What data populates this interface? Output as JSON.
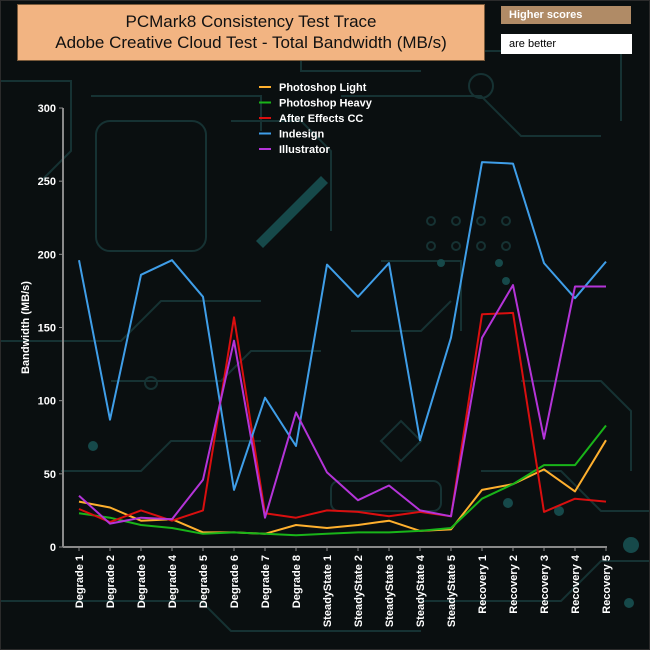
{
  "title_line1": "PCMark8 Consistency Test Trace",
  "title_line2": "Adobe Creative Cloud Test - Total Bandwidth (MB/s)",
  "note_line1": "Higher scores",
  "note_line2": "are better",
  "chart_data": {
    "type": "line",
    "title": "PCMark8 Consistency Test Trace — Adobe Creative Cloud Test - Total Bandwidth (MB/s)",
    "xlabel": "",
    "ylabel": "Bandwidth (MB/s)",
    "ylim": [
      0,
      300
    ],
    "yticks": [
      0,
      50,
      100,
      150,
      200,
      250,
      300
    ],
    "grid": false,
    "legend_position": "top-center",
    "categories": [
      "Degrade 1",
      "Degrade 2",
      "Degrade 3",
      "Degrade 4",
      "Degrade 5",
      "Degrade 6",
      "Degrade 7",
      "Degrade 8",
      "SteadyState 1",
      "SteadyState 2",
      "SteadyState 3",
      "SteadyState 4",
      "SteadyState 5",
      "Recovery 1",
      "Recovery 2",
      "Recovery 3",
      "Recovery 4",
      "Recovery 5"
    ],
    "series": [
      {
        "name": "Photoshop Light",
        "color": "#ffb02e",
        "values": [
          31,
          27,
          18,
          19,
          10,
          10,
          9,
          15,
          13,
          15,
          18,
          11,
          12,
          39,
          43,
          53,
          38,
          73
        ]
      },
      {
        "name": "Photoshop Heavy",
        "color": "#19b419",
        "values": [
          23,
          20,
          15,
          13,
          9,
          10,
          9,
          8,
          9,
          10,
          10,
          11,
          13,
          33,
          43,
          56,
          56,
          83
        ]
      },
      {
        "name": "After Effects CC",
        "color": "#d90f0f",
        "values": [
          26,
          17,
          25,
          18,
          25,
          157,
          23,
          20,
          25,
          24,
          21,
          24,
          21,
          159,
          160,
          24,
          33,
          31
        ]
      },
      {
        "name": "Indesign",
        "color": "#3f9ee8",
        "values": [
          196,
          87,
          186,
          196,
          171,
          39,
          102,
          69,
          193,
          171,
          194,
          73,
          143,
          263,
          262,
          194,
          170,
          195
        ]
      },
      {
        "name": "Illustrator",
        "color": "#b434d8",
        "values": [
          35,
          16,
          20,
          19,
          46,
          141,
          20,
          92,
          51,
          32,
          42,
          25,
          21,
          143,
          179,
          74,
          178,
          178
        ]
      }
    ]
  }
}
